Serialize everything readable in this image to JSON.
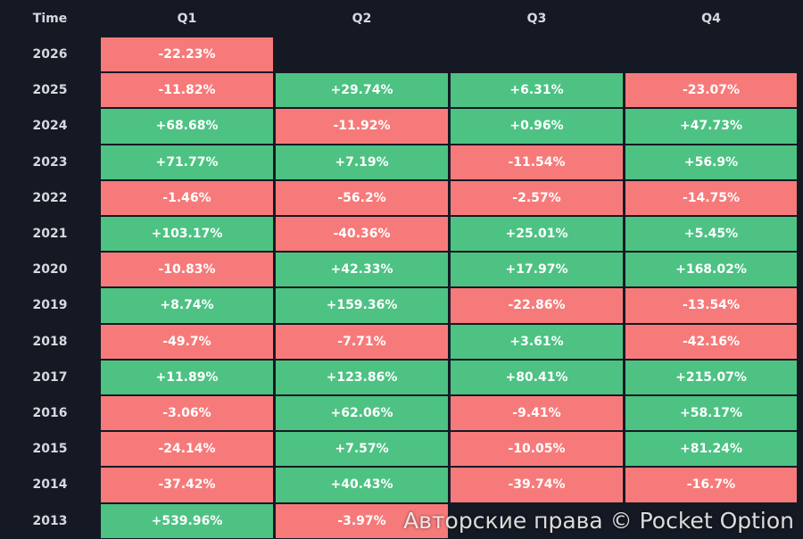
{
  "table": {
    "header": [
      "Time",
      "Q1",
      "Q2",
      "Q3",
      "Q4"
    ],
    "positive_color": "#4dc283",
    "negative_color": "#f77a7a",
    "rows": [
      [
        "2026",
        "-22.23%",
        null,
        null,
        null
      ],
      [
        "2025",
        "-11.82%",
        "+29.74%",
        "+6.31%",
        "-23.07%"
      ],
      [
        "2024",
        "+68.68%",
        "-11.92%",
        "+0.96%",
        "+47.73%"
      ],
      [
        "2023",
        "+71.77%",
        "+7.19%",
        "-11.54%",
        "+56.9%"
      ],
      [
        "2022",
        "-1.46%",
        "-56.2%",
        "-2.57%",
        "-14.75%"
      ],
      [
        "2021",
        "+103.17%",
        "-40.36%",
        "+25.01%",
        "+5.45%"
      ],
      [
        "2020",
        "-10.83%",
        "+42.33%",
        "+17.97%",
        "+168.02%"
      ],
      [
        "2019",
        "+8.74%",
        "+159.36%",
        "-22.86%",
        "-13.54%"
      ],
      [
        "2018",
        "-49.7%",
        "-7.71%",
        "+3.61%",
        "-42.16%"
      ],
      [
        "2017",
        "+11.89%",
        "+123.86%",
        "+80.41%",
        "+215.07%"
      ],
      [
        "2016",
        "-3.06%",
        "+62.06%",
        "-9.41%",
        "+58.17%"
      ],
      [
        "2015",
        "-24.14%",
        "+7.57%",
        "-10.05%",
        "+81.24%"
      ],
      [
        "2014",
        "-37.42%",
        "+40.43%",
        "-39.74%",
        "-16.7%"
      ],
      [
        "2013",
        "+539.96%",
        "-3.97%",
        null,
        null
      ]
    ]
  },
  "watermark": "Авторские права © Pocket Option"
}
